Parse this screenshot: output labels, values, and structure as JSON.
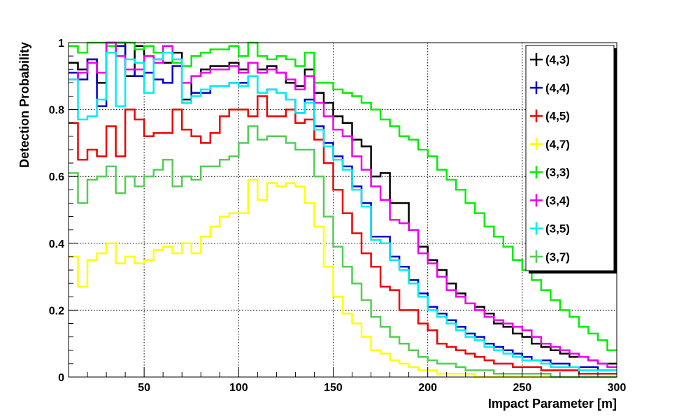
{
  "chart_data": {
    "type": "line",
    "step": true,
    "xlabel": "Impact Parameter [m]",
    "ylabel": "Detection Probability",
    "xlim": [
      10,
      300
    ],
    "ylim": [
      0,
      1
    ],
    "grid": true,
    "legend_position": "top-right",
    "x_ticks": [
      50,
      100,
      150,
      200,
      250,
      300
    ],
    "y_ticks": [
      0,
      0.2,
      0.4,
      0.6,
      0.8,
      1
    ],
    "y_tick_labels": [
      "0",
      "0.2",
      "0.4",
      "0.6",
      "0.8",
      "1"
    ],
    "bin_edges": [
      10,
      15,
      20,
      25,
      30,
      35,
      40,
      45,
      50,
      55,
      60,
      65,
      70,
      75,
      80,
      85,
      90,
      95,
      100,
      105,
      110,
      115,
      120,
      125,
      130,
      135,
      140,
      145,
      150,
      155,
      160,
      165,
      170,
      175,
      180,
      185,
      190,
      195,
      200,
      205,
      210,
      215,
      220,
      225,
      230,
      235,
      240,
      245,
      250,
      255,
      260,
      265,
      270,
      275,
      280,
      285,
      290,
      295,
      300
    ],
    "series": [
      {
        "name": "(4,3)",
        "color": "#000000",
        "values": [
          0.94,
          0.92,
          0.95,
          0.88,
          1.0,
          1.0,
          0.9,
          0.99,
          0.96,
          0.95,
          0.94,
          0.97,
          0.83,
          0.9,
          0.92,
          0.93,
          0.93,
          0.94,
          0.92,
          0.94,
          0.92,
          0.93,
          0.91,
          0.88,
          0.87,
          0.92,
          0.85,
          0.82,
          0.78,
          0.76,
          0.71,
          0.69,
          0.6,
          0.61,
          0.52,
          0.52,
          0.44,
          0.39,
          0.35,
          0.32,
          0.28,
          0.25,
          0.22,
          0.21,
          0.19,
          0.16,
          0.15,
          0.13,
          0.12,
          0.1,
          0.09,
          0.08,
          0.07,
          0.06,
          0.06,
          0.05,
          0.04,
          0.04
        ]
      },
      {
        "name": "(4,4)",
        "color": "#0000cc",
        "values": [
          0.91,
          0.89,
          0.95,
          0.81,
          0.97,
          0.99,
          0.92,
          0.9,
          0.91,
          0.89,
          0.88,
          0.93,
          0.82,
          0.85,
          0.85,
          0.87,
          0.87,
          0.88,
          0.88,
          0.9,
          0.85,
          0.86,
          0.85,
          0.83,
          0.79,
          0.83,
          0.75,
          0.7,
          0.66,
          0.63,
          0.57,
          0.52,
          0.42,
          0.42,
          0.36,
          0.33,
          0.29,
          0.25,
          0.21,
          0.19,
          0.17,
          0.15,
          0.13,
          0.12,
          0.1,
          0.09,
          0.08,
          0.07,
          0.06,
          0.05,
          0.05,
          0.04,
          0.04,
          0.03,
          0.03,
          0.03,
          0.02,
          0.02
        ]
      },
      {
        "name": "(4,5)",
        "color": "#ee0000",
        "values": [
          0.76,
          0.65,
          0.68,
          0.66,
          0.75,
          0.66,
          0.8,
          0.77,
          0.72,
          0.73,
          0.73,
          0.8,
          0.74,
          0.72,
          0.7,
          0.73,
          0.78,
          0.8,
          0.8,
          0.78,
          0.84,
          0.78,
          0.78,
          0.8,
          0.76,
          0.77,
          0.71,
          0.64,
          0.56,
          0.49,
          0.43,
          0.37,
          0.33,
          0.27,
          0.26,
          0.2,
          0.2,
          0.16,
          0.14,
          0.1,
          0.09,
          0.08,
          0.07,
          0.06,
          0.05,
          0.04,
          0.04,
          0.03,
          0.03,
          0.03,
          0.02,
          0.02,
          0.02,
          0.02,
          0.01,
          0.01,
          0.01,
          0.01
        ]
      },
      {
        "name": "(4,7)",
        "color": "#ffff00",
        "values": [
          0.36,
          0.27,
          0.35,
          0.37,
          0.4,
          0.34,
          0.36,
          0.34,
          0.35,
          0.38,
          0.39,
          0.37,
          0.4,
          0.37,
          0.42,
          0.45,
          0.48,
          0.49,
          0.49,
          0.59,
          0.53,
          0.58,
          0.57,
          0.58,
          0.57,
          0.52,
          0.45,
          0.33,
          0.24,
          0.19,
          0.16,
          0.12,
          0.08,
          0.07,
          0.05,
          0.04,
          0.03,
          0.02,
          0.02,
          0.01,
          0.01,
          0.01,
          0.01,
          0.0,
          0.0,
          0.0,
          0.0,
          0.0,
          0.0,
          0.0,
          0.0,
          0.0,
          0.0,
          0.0,
          0.0,
          0.0,
          0.0,
          0.0
        ]
      },
      {
        "name": "(3,3)",
        "color": "#00ee00",
        "values": [
          0.99,
          0.97,
          1.0,
          1.0,
          0.99,
          1.0,
          1.0,
          0.98,
          0.99,
          0.97,
          0.97,
          0.94,
          0.93,
          0.96,
          0.97,
          0.98,
          0.98,
          0.99,
          0.96,
          1.0,
          0.96,
          0.95,
          0.96,
          0.95,
          0.93,
          0.97,
          0.88,
          0.88,
          0.86,
          0.85,
          0.84,
          0.82,
          0.8,
          0.77,
          0.75,
          0.72,
          0.71,
          0.68,
          0.66,
          0.62,
          0.59,
          0.56,
          0.52,
          0.49,
          0.45,
          0.42,
          0.39,
          0.35,
          0.32,
          0.29,
          0.26,
          0.23,
          0.2,
          0.18,
          0.15,
          0.13,
          0.11,
          0.08
        ]
      },
      {
        "name": "(3,4)",
        "color": "#ee00ee",
        "values": [
          0.89,
          0.91,
          0.94,
          0.91,
          1.0,
          0.96,
          0.92,
          0.92,
          0.96,
          0.94,
          0.99,
          0.95,
          0.88,
          0.9,
          0.91,
          0.92,
          0.92,
          0.93,
          0.91,
          0.94,
          0.91,
          0.92,
          0.91,
          0.89,
          0.86,
          0.9,
          0.82,
          0.78,
          0.74,
          0.72,
          0.66,
          0.62,
          0.57,
          0.53,
          0.47,
          0.46,
          0.44,
          0.37,
          0.34,
          0.3,
          0.26,
          0.24,
          0.22,
          0.2,
          0.18,
          0.17,
          0.16,
          0.15,
          0.14,
          0.12,
          0.1,
          0.09,
          0.08,
          0.07,
          0.06,
          0.05,
          0.04,
          0.03
        ]
      },
      {
        "name": "(3,5)",
        "color": "#00eeee",
        "values": [
          0.89,
          0.77,
          0.78,
          0.83,
          0.97,
          0.81,
          0.95,
          0.94,
          0.85,
          0.95,
          0.97,
          0.95,
          0.82,
          0.84,
          0.86,
          0.87,
          0.87,
          0.88,
          0.87,
          0.9,
          0.85,
          0.86,
          0.85,
          0.83,
          0.79,
          0.82,
          0.74,
          0.69,
          0.65,
          0.62,
          0.56,
          0.51,
          0.41,
          0.4,
          0.35,
          0.32,
          0.28,
          0.24,
          0.2,
          0.18,
          0.16,
          0.14,
          0.12,
          0.11,
          0.09,
          0.08,
          0.07,
          0.06,
          0.05,
          0.05,
          0.04,
          0.03,
          0.03,
          0.03,
          0.02,
          0.02,
          0.02,
          0.02
        ]
      },
      {
        "name": "(3,7)",
        "color": "#55cc55",
        "values": [
          0.61,
          0.52,
          0.59,
          0.6,
          0.63,
          0.55,
          0.6,
          0.57,
          0.6,
          0.62,
          0.65,
          0.57,
          0.6,
          0.59,
          0.63,
          0.63,
          0.65,
          0.66,
          0.7,
          0.75,
          0.71,
          0.72,
          0.72,
          0.7,
          0.68,
          0.68,
          0.6,
          0.48,
          0.39,
          0.33,
          0.28,
          0.23,
          0.18,
          0.15,
          0.12,
          0.1,
          0.08,
          0.06,
          0.05,
          0.04,
          0.04,
          0.03,
          0.02,
          0.02,
          0.02,
          0.01,
          0.01,
          0.01,
          0.01,
          0.01,
          0.01,
          0.0,
          0.0,
          0.0,
          0.0,
          0.0,
          0.0,
          0.0
        ]
      }
    ]
  }
}
